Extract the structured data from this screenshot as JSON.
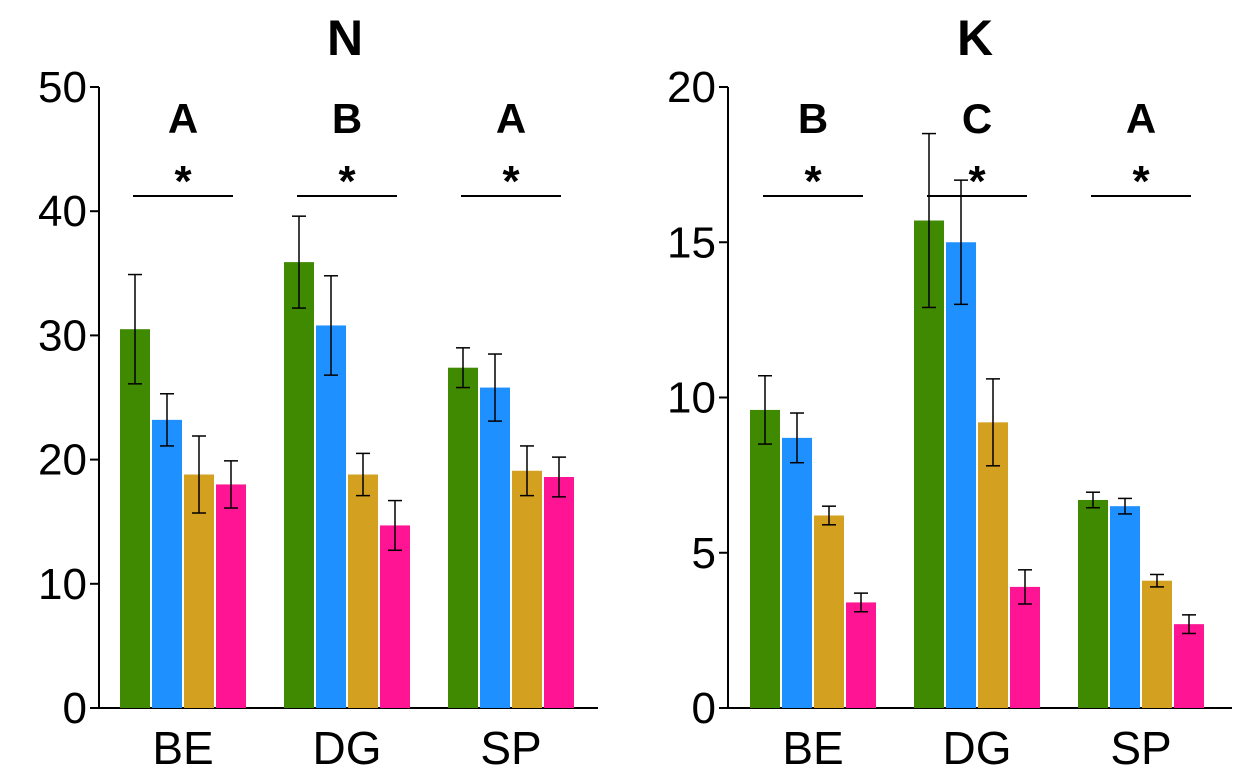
{
  "chart_data": [
    {
      "type": "bar",
      "title": "N",
      "xlabel": "",
      "ylabel": "",
      "ylim": [
        0,
        50
      ],
      "yticks": [
        "0",
        "10",
        "20",
        "30",
        "40",
        "50"
      ],
      "categories": [
        "BE",
        "DG",
        "SP"
      ],
      "group_letters": [
        "A",
        "B",
        "A"
      ],
      "significance": [
        "*",
        "*",
        "*"
      ],
      "grid": false,
      "series": [
        {
          "color": "#3f8a00",
          "values": [
            30.5,
            35.9,
            27.4
          ],
          "errors": [
            4.4,
            3.7,
            1.6
          ]
        },
        {
          "color": "#1e90ff",
          "values": [
            23.2,
            30.8,
            25.8
          ],
          "errors": [
            2.1,
            4.0,
            2.7
          ]
        },
        {
          "color": "#d4a020",
          "values": [
            18.8,
            18.8,
            19.1
          ],
          "errors": [
            3.1,
            1.7,
            2.0
          ]
        },
        {
          "color": "#ff1493",
          "values": [
            18.0,
            14.7,
            18.6
          ],
          "errors": [
            1.9,
            2.0,
            1.6
          ]
        }
      ]
    },
    {
      "type": "bar",
      "title": "K",
      "xlabel": "",
      "ylabel": "",
      "ylim": [
        0,
        20
      ],
      "yticks": [
        "0",
        "5",
        "10",
        "15",
        "20"
      ],
      "categories": [
        "BE",
        "DG",
        "SP"
      ],
      "group_letters": [
        "B",
        "C",
        "A"
      ],
      "significance": [
        "*",
        "*",
        "*"
      ],
      "grid": false,
      "series": [
        {
          "color": "#3f8a00",
          "values": [
            9.6,
            15.7,
            6.7
          ],
          "errors": [
            1.1,
            2.8,
            0.25
          ]
        },
        {
          "color": "#1e90ff",
          "values": [
            8.7,
            15.0,
            6.5
          ],
          "errors": [
            0.8,
            2.0,
            0.25
          ]
        },
        {
          "color": "#d4a020",
          "values": [
            6.2,
            9.2,
            4.1
          ],
          "errors": [
            0.3,
            1.4,
            0.2
          ]
        },
        {
          "color": "#ff1493",
          "values": [
            3.4,
            3.9,
            2.7
          ],
          "errors": [
            0.3,
            0.55,
            0.3
          ]
        }
      ]
    }
  ]
}
